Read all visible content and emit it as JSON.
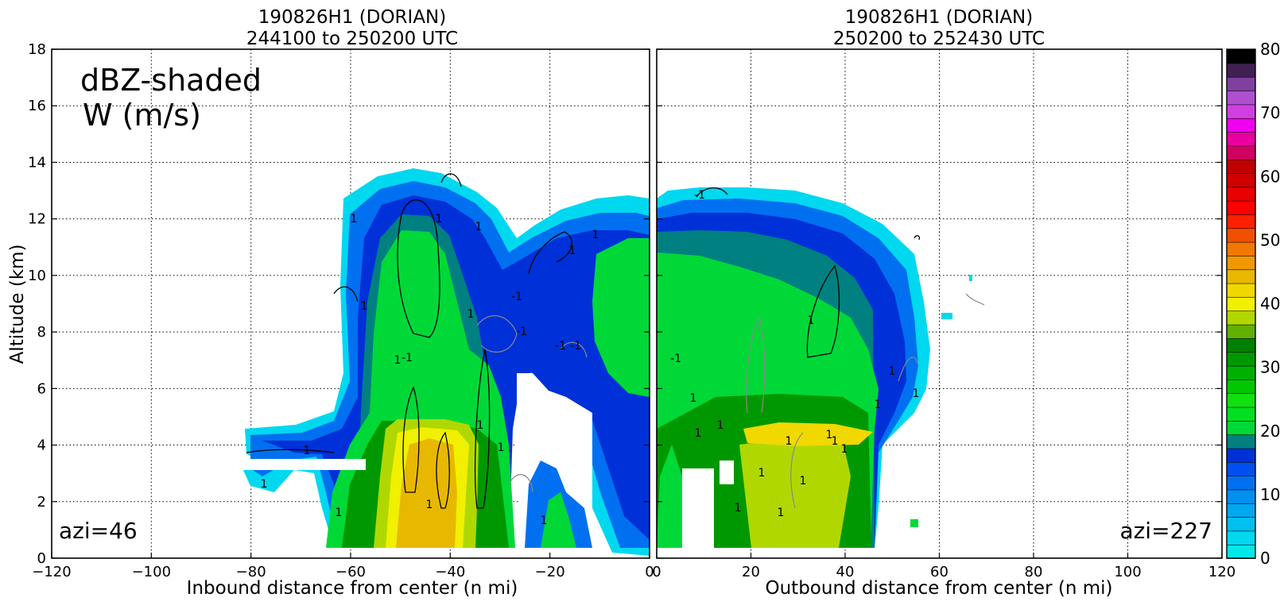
{
  "chart_data": {
    "type": "heatmap",
    "overlay_text": {
      "line1": "dBZ-shaded",
      "line2": "W (m/s)"
    },
    "ylabel": "Altitude (km)",
    "ylim": [
      0,
      18
    ],
    "yticks": [
      "0",
      "2",
      "4",
      "6",
      "8",
      "10",
      "12",
      "14",
      "16",
      "18"
    ],
    "grid": true,
    "panels": [
      {
        "title_line1": "190826H1 (DORIAN)",
        "title_line2": "244100 to 250200 UTC",
        "xlabel": "Inbound distance from center (n mi)",
        "xlim": [
          -120,
          0
        ],
        "xticks": [
          "−120",
          "−100",
          "−80",
          "−60",
          "−40",
          "−20",
          "0"
        ],
        "azimuth_label": "azi=46"
      },
      {
        "title_line1": "190826H1 (DORIAN)",
        "title_line2": "250200 to 252430 UTC",
        "xlabel": "Outbound distance from center (n mi)",
        "xlim": [
          0,
          120
        ],
        "xticks": [
          "0",
          "20",
          "40",
          "60",
          "80",
          "100",
          "120"
        ],
        "azimuth_label": "azi=227"
      }
    ],
    "contour_labels": [
      "1",
      "-1"
    ],
    "colorbar": {
      "label_ticks": [
        "0",
        "10",
        "20",
        "30",
        "40",
        "50",
        "60",
        "70",
        "80"
      ],
      "colors": [
        "#00e8e8",
        "#00d8f0",
        "#00c0f0",
        "#00a8f0",
        "#0090f0",
        "#0070f0",
        "#0050f0",
        "#0030d8",
        "#008080",
        "#00d838",
        "#00e020",
        "#10e010",
        "#00c800",
        "#00b000",
        "#009800",
        "#008000",
        "#60b000",
        "#b0d800",
        "#f0f000",
        "#f0d800",
        "#e8b800",
        "#f09800",
        "#f07800",
        "#f05000",
        "#ff2000",
        "#ff0000",
        "#e80000",
        "#d00000",
        "#c00000",
        "#d00060",
        "#e800a0",
        "#f000f0",
        "#d040e0",
        "#b050d0",
        "#8040a0",
        "#402050",
        "#000000"
      ]
    }
  }
}
